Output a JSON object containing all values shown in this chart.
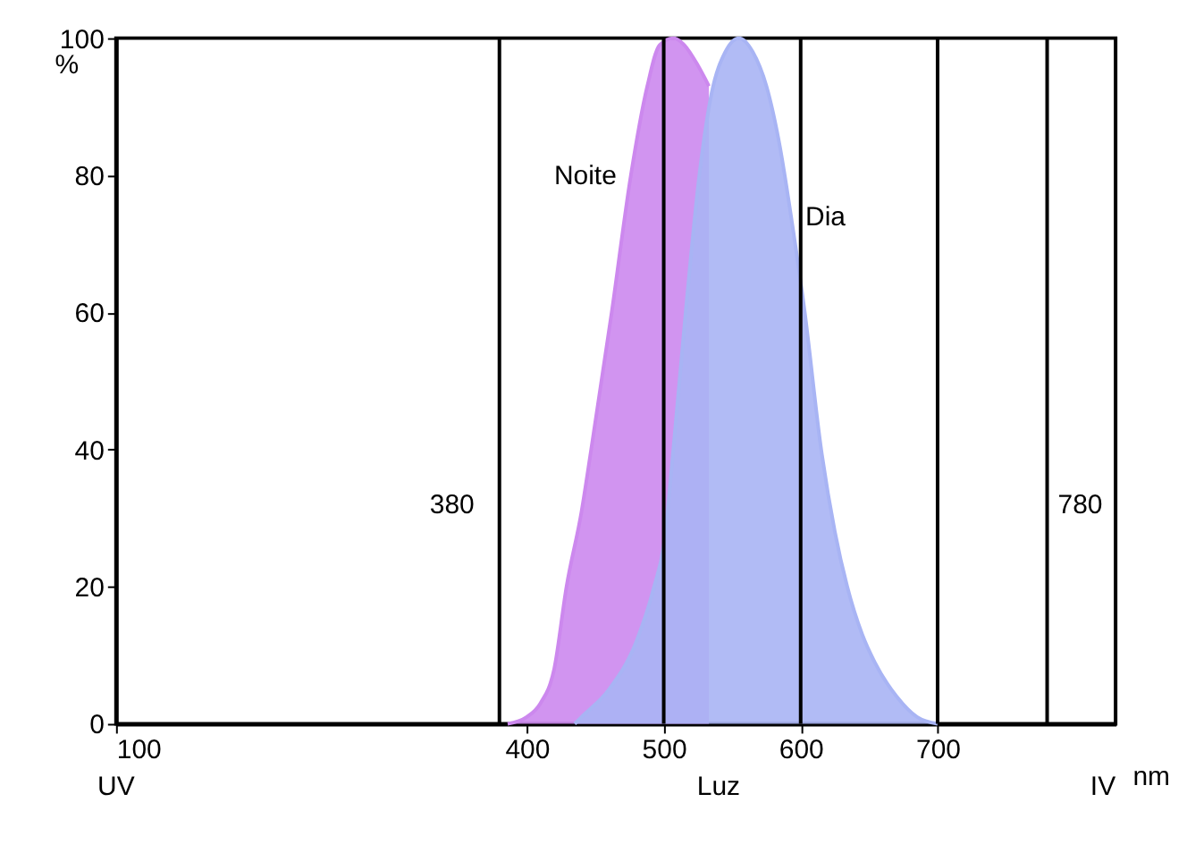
{
  "chart_data": {
    "type": "area",
    "xlabel": "nm",
    "ylabel": "%",
    "xlim": [
      100,
      830
    ],
    "ylim": [
      0,
      100
    ],
    "xticks": [
      100,
      400,
      500,
      600,
      700
    ],
    "yticks": [
      0,
      20,
      40,
      60,
      80,
      100
    ],
    "grid": false,
    "legend": false,
    "series": [
      {
        "name": "Noite",
        "color": "#cc88ee",
        "x": [
          386,
          400,
          410,
          420,
          429,
          440,
          447,
          462,
          476,
          488,
          497,
          507,
          515,
          525,
          533
        ],
        "values": [
          0,
          1,
          3,
          8,
          20,
          31,
          40,
          60,
          80,
          93,
          99,
          100,
          99,
          96,
          93
        ]
      },
      {
        "name": "Dia",
        "color": "#a8b4f4",
        "x": [
          435,
          440,
          460,
          480,
          493,
          500,
          507,
          516,
          526,
          535,
          545,
          555,
          565,
          575,
          585,
          593,
          603,
          615,
          625,
          634,
          645,
          654,
          670,
          685,
          700
        ],
        "values": [
          0,
          1,
          5,
          12,
          20,
          26,
          40,
          60,
          80,
          92,
          98,
          100,
          98,
          93,
          84,
          74,
          60,
          40,
          28,
          20,
          13,
          9,
          4,
          1,
          0
        ]
      }
    ],
    "ref_lines": [
      {
        "axis": "x",
        "value": 380,
        "label": "380"
      },
      {
        "axis": "x",
        "value": 500,
        "label": null
      },
      {
        "axis": "x",
        "value": 600,
        "label": null
      },
      {
        "axis": "x",
        "value": 700,
        "label": null
      },
      {
        "axis": "x",
        "value": 780,
        "label": "780"
      }
    ],
    "annotations": [
      "UV",
      "Luz",
      "IV"
    ]
  }
}
